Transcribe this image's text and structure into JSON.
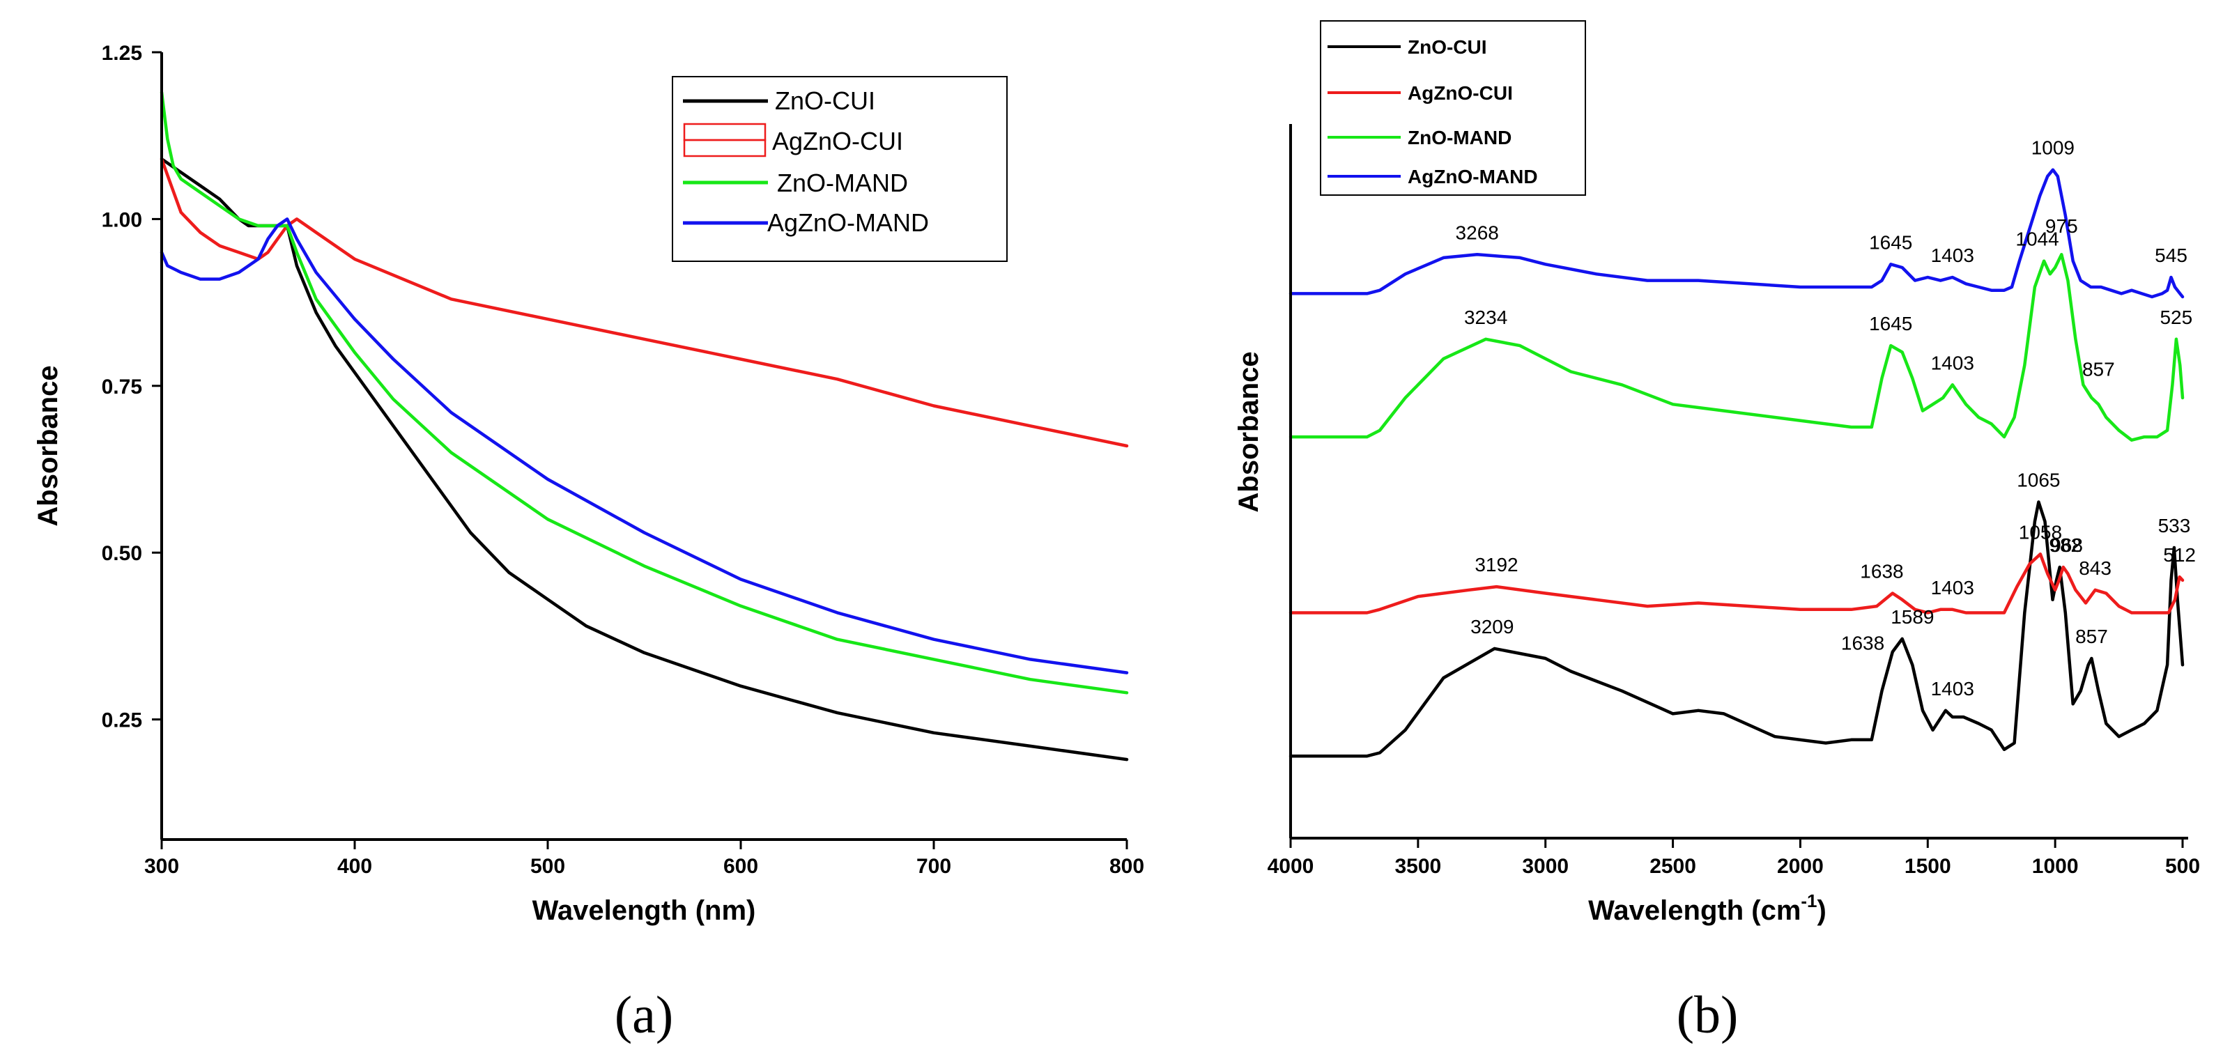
{
  "chart_data": [
    {
      "panel": "(a)",
      "type": "line",
      "xlabel": "Wavelength (nm)",
      "ylabel": "Absorbance",
      "xlim": [
        300,
        800
      ],
      "ylim": [
        0.07,
        1.25
      ],
      "xticks": [
        300,
        400,
        500,
        600,
        700,
        800
      ],
      "yticks": [
        0.25,
        0.5,
        0.75,
        1.0,
        1.25
      ],
      "xtick_labels": [
        "300",
        "400",
        "500",
        "600",
        "700",
        "800"
      ],
      "ytick_labels": [
        "0.25",
        "0.50",
        "0.75",
        "1.00",
        "1.25"
      ],
      "legend_position": "top-right",
      "series": [
        {
          "name": "ZnO-CUI",
          "color": "#000000",
          "x": [
            300,
            310,
            320,
            330,
            340,
            345,
            350,
            355,
            360,
            365,
            370,
            380,
            390,
            400,
            420,
            440,
            460,
            480,
            500,
            520,
            550,
            600,
            650,
            700,
            750,
            800
          ],
          "y": [
            1.09,
            1.07,
            1.05,
            1.03,
            1.0,
            0.99,
            0.99,
            0.99,
            0.99,
            0.99,
            0.93,
            0.86,
            0.81,
            0.77,
            0.69,
            0.61,
            0.53,
            0.47,
            0.43,
            0.39,
            0.35,
            0.3,
            0.26,
            0.23,
            0.21,
            0.19
          ]
        },
        {
          "name": "AgZnO-CUI",
          "color": "#ee1c1c",
          "x": [
            300,
            305,
            310,
            320,
            330,
            340,
            350,
            355,
            360,
            365,
            370,
            375,
            380,
            400,
            450,
            500,
            550,
            600,
            650,
            700,
            750,
            800
          ],
          "y": [
            1.09,
            1.05,
            1.01,
            0.98,
            0.96,
            0.95,
            0.94,
            0.95,
            0.97,
            0.99,
            1.0,
            0.99,
            0.98,
            0.94,
            0.88,
            0.85,
            0.82,
            0.79,
            0.76,
            0.72,
            0.69,
            0.66
          ]
        },
        {
          "name": "ZnO-MAND",
          "color": "#17e717",
          "x": [
            300,
            303,
            306,
            310,
            320,
            330,
            340,
            350,
            360,
            365,
            370,
            380,
            400,
            420,
            450,
            500,
            550,
            600,
            650,
            700,
            750,
            800
          ],
          "y": [
            1.19,
            1.12,
            1.08,
            1.06,
            1.04,
            1.02,
            1.0,
            0.99,
            0.99,
            0.99,
            0.95,
            0.88,
            0.8,
            0.73,
            0.65,
            0.55,
            0.48,
            0.42,
            0.37,
            0.34,
            0.31,
            0.29
          ]
        },
        {
          "name": "AgZnO-MAND",
          "color": "#1212ee",
          "x": [
            300,
            303,
            310,
            320,
            330,
            340,
            350,
            355,
            360,
            365,
            370,
            380,
            400,
            420,
            450,
            500,
            550,
            600,
            650,
            700,
            750,
            800
          ],
          "y": [
            0.95,
            0.93,
            0.92,
            0.91,
            0.91,
            0.92,
            0.94,
            0.97,
            0.99,
            1.0,
            0.97,
            0.92,
            0.85,
            0.79,
            0.71,
            0.61,
            0.53,
            0.46,
            0.41,
            0.37,
            0.34,
            0.32
          ]
        }
      ]
    },
    {
      "panel": "(b)",
      "type": "line",
      "xlabel": "Wavelength (cm",
      "xlabel_superscript": "-1",
      "xlabel_suffix": ")",
      "ylabel": "Absorbance",
      "xlim": [
        4000,
        500
      ],
      "x_reversed": true,
      "ylim": [
        0,
        100
      ],
      "xticks": [
        4000,
        3500,
        3000,
        2500,
        2000,
        1500,
        1000,
        500
      ],
      "xtick_labels": [
        "4000",
        "3500",
        "3000",
        "2500",
        "2000",
        "1500",
        "1000",
        "500"
      ],
      "y_ticks_shown": false,
      "legend_position": "top-left (above axes)",
      "series": [
        {
          "name": "ZnO-CUI",
          "color": "#000000",
          "x": [
            4000,
            3700,
            3650,
            3550,
            3400,
            3200,
            3000,
            2900,
            2700,
            2500,
            2400,
            2300,
            2100,
            1900,
            1800,
            1720,
            1680,
            1638,
            1600,
            1560,
            1520,
            1480,
            1430,
            1403,
            1360,
            1300,
            1250,
            1200,
            1160,
            1120,
            1080,
            1065,
            1040,
            1010,
            995,
            982,
            960,
            930,
            900,
            870,
            857,
            830,
            800,
            750,
            700,
            650,
            600,
            560,
            545,
            533,
            520,
            500
          ],
          "y": [
            8,
            8,
            8.5,
            12,
            20,
            24.5,
            23,
            21,
            18,
            14.5,
            15,
            14.5,
            11,
            10,
            10.5,
            10.5,
            18,
            24,
            26,
            22,
            15,
            12,
            15,
            14,
            14,
            13,
            12,
            9,
            10,
            30,
            44,
            47,
            44,
            32,
            35,
            37,
            30,
            16,
            18,
            22,
            23,
            18,
            13,
            11,
            12,
            13,
            15,
            22,
            35,
            40,
            32,
            22
          ]
        },
        {
          "name": "AgZnO-CUI",
          "color": "#ee1c1c",
          "x": [
            4000,
            3700,
            3650,
            3500,
            3300,
            3192,
            3000,
            2800,
            2600,
            2400,
            2200,
            2000,
            1800,
            1700,
            1638,
            1600,
            1550,
            1500,
            1450,
            1403,
            1350,
            1300,
            1250,
            1200,
            1150,
            1100,
            1058,
            1030,
            1000,
            985,
            968,
            950,
            920,
            880,
            843,
            800,
            750,
            700,
            650,
            600,
            555,
            530,
            512,
            500
          ],
          "y": [
            30,
            30,
            30.5,
            32.5,
            33.5,
            34,
            33,
            32,
            31,
            31.5,
            31,
            30.5,
            30.5,
            31,
            33,
            32,
            30.5,
            30,
            30.5,
            30.5,
            30,
            30,
            30,
            30,
            34,
            37.5,
            39,
            36,
            33.5,
            35,
            37,
            36,
            33.5,
            31.5,
            33.5,
            33,
            31,
            30,
            30,
            30,
            30,
            32,
            35.5,
            35
          ]
        },
        {
          "name": "ZnO-MAND",
          "color": "#17e717",
          "x": [
            4000,
            3700,
            3650,
            3550,
            3400,
            3234,
            3100,
            3000,
            2900,
            2700,
            2500,
            2300,
            2100,
            1900,
            1800,
            1720,
            1680,
            1645,
            1600,
            1560,
            1520,
            1480,
            1440,
            1403,
            1350,
            1300,
            1250,
            1200,
            1160,
            1120,
            1080,
            1044,
            1020,
            1000,
            975,
            950,
            920,
            890,
            857,
            830,
            800,
            750,
            700,
            650,
            600,
            560,
            540,
            525,
            510,
            500
          ],
          "y": [
            57,
            57,
            58,
            63,
            69,
            72,
            71,
            69,
            67,
            65,
            62,
            61,
            60,
            59,
            58.5,
            58.5,
            66,
            71,
            70,
            66,
            61,
            62,
            63,
            65,
            62,
            60,
            59,
            57,
            60,
            68,
            80,
            84,
            82,
            83,
            85,
            81,
            72,
            65,
            63,
            62,
            60,
            58,
            56.5,
            57,
            57,
            58,
            65,
            72,
            68,
            63
          ]
        },
        {
          "name": "AgZnO-MAND",
          "color": "#1212ee",
          "x": [
            4000,
            3700,
            3650,
            3550,
            3400,
            3268,
            3100,
            3000,
            2800,
            2600,
            2400,
            2200,
            2000,
            1800,
            1720,
            1680,
            1645,
            1600,
            1550,
            1500,
            1450,
            1403,
            1350,
            1300,
            1250,
            1200,
            1170,
            1140,
            1100,
            1060,
            1030,
            1009,
            990,
            960,
            930,
            900,
            860,
            820,
            780,
            740,
            700,
            660,
            620,
            580,
            560,
            545,
            530,
            510,
            500
          ],
          "y": [
            79,
            79,
            79.5,
            82,
            84.5,
            85,
            84.5,
            83.5,
            82,
            81,
            81,
            80.5,
            80,
            80,
            80,
            81,
            83.5,
            83,
            81,
            81.5,
            81,
            81.5,
            80.5,
            80,
            79.5,
            79.5,
            80,
            84,
            89,
            94,
            97,
            98,
            97,
            91,
            84,
            81,
            80,
            80,
            79.5,
            79,
            79.5,
            79,
            78.5,
            79,
            79.5,
            81.5,
            80,
            79,
            78.5
          ]
        }
      ],
      "annotations": [
        {
          "text": "3268",
          "x": 3268,
          "y": 85,
          "size": "large"
        },
        {
          "text": "1645",
          "x": 1645,
          "y": 83.5,
          "size": "large"
        },
        {
          "text": "1403",
          "x": 1403,
          "y": 81.5,
          "size": "large"
        },
        {
          "text": "1009",
          "x": 1009,
          "y": 98,
          "size": "large"
        },
        {
          "text": "545",
          "x": 545,
          "y": 81.5,
          "size": "normal"
        },
        {
          "text": "3234",
          "x": 3234,
          "y": 72,
          "size": "large"
        },
        {
          "text": "1645",
          "x": 1645,
          "y": 71,
          "size": "large"
        },
        {
          "text": "1403",
          "x": 1403,
          "y": 65,
          "size": "large"
        },
        {
          "text": "1044",
          "x": 1070,
          "y": 84,
          "size": "normal"
        },
        {
          "text": "975",
          "x": 975,
          "y": 86,
          "size": "normal"
        },
        {
          "text": "857",
          "x": 830,
          "y": 64,
          "size": "normal"
        },
        {
          "text": "525",
          "x": 525,
          "y": 72,
          "size": "large"
        },
        {
          "text": "3192",
          "x": 3192,
          "y": 34,
          "size": "large"
        },
        {
          "text": "1638",
          "x": 1680,
          "y": 33,
          "size": "normal"
        },
        {
          "text": "1403",
          "x": 1403,
          "y": 30.5,
          "size": "large"
        },
        {
          "text": "1058",
          "x": 1058,
          "y": 39,
          "size": "normal"
        },
        {
          "text": "968",
          "x": 955,
          "y": 37,
          "size": "normal"
        },
        {
          "text": "843",
          "x": 843,
          "y": 33.5,
          "size": "normal"
        },
        {
          "text": "512",
          "x": 512,
          "y": 35.5,
          "size": "large"
        },
        {
          "text": "3209",
          "x": 3209,
          "y": 24.5,
          "size": "large"
        },
        {
          "text": "1638",
          "x": 1755,
          "y": 22,
          "size": "normal"
        },
        {
          "text": "1589",
          "x": 1560,
          "y": 26,
          "size": "normal"
        },
        {
          "text": "1403",
          "x": 1403,
          "y": 15,
          "size": "normal"
        },
        {
          "text": "1065",
          "x": 1065,
          "y": 47,
          "size": "large"
        },
        {
          "text": "982",
          "x": 960,
          "y": 37,
          "size": "large"
        },
        {
          "text": "857",
          "x": 857,
          "y": 23,
          "size": "large"
        },
        {
          "text": "533",
          "x": 533,
          "y": 40,
          "size": "normal"
        }
      ]
    }
  ]
}
